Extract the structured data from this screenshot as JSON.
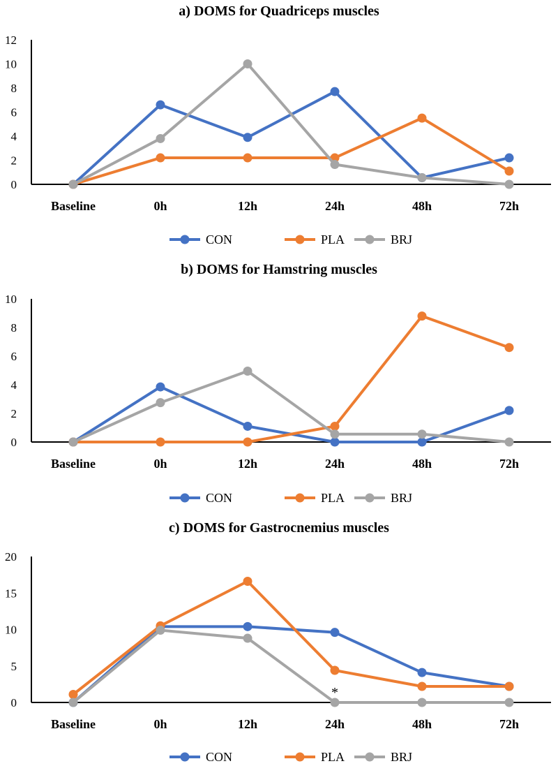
{
  "colors": {
    "CON": "#4472c4",
    "PLA": "#ed7d31",
    "BRJ": "#a5a5a5"
  },
  "chart_data": [
    {
      "type": "line",
      "title": "a) DOMS for Quadriceps muscles",
      "categories": [
        "Baseline",
        "0h",
        "12h",
        "24h",
        "48h",
        "72h"
      ],
      "ylim": [
        0,
        12
      ],
      "yticks": [
        0,
        2,
        4,
        6,
        8,
        10,
        12
      ],
      "series": [
        {
          "name": "CON",
          "values": [
            0,
            6.6,
            3.9,
            7.7,
            0.55,
            2.2
          ]
        },
        {
          "name": "PLA",
          "values": [
            0,
            2.2,
            2.2,
            2.2,
            5.5,
            1.1
          ]
        },
        {
          "name": "BRJ",
          "values": [
            0,
            3.8,
            10,
            1.65,
            0.55,
            0
          ]
        }
      ],
      "legend": "bottom",
      "annotations": []
    },
    {
      "type": "line",
      "title": "b) DOMS for Hamstring muscles",
      "categories": [
        "Baseline",
        "0h",
        "12h",
        "24h",
        "48h",
        "72h"
      ],
      "ylim": [
        0,
        10
      ],
      "yticks": [
        0,
        2,
        4,
        6,
        8,
        10
      ],
      "series": [
        {
          "name": "CON",
          "values": [
            0,
            3.85,
            1.1,
            0,
            0,
            2.2
          ]
        },
        {
          "name": "PLA",
          "values": [
            0,
            0,
            0,
            1.1,
            8.8,
            6.6
          ]
        },
        {
          "name": "BRJ",
          "values": [
            0,
            2.75,
            4.95,
            0.55,
            0.55,
            0
          ]
        }
      ],
      "legend": "bottom",
      "annotations": []
    },
    {
      "type": "line",
      "title": "c) DOMS for Gastrocnemius muscles",
      "categories": [
        "Baseline",
        "0h",
        "12h",
        "24h",
        "48h",
        "72h"
      ],
      "ylim": [
        0,
        20
      ],
      "yticks": [
        0,
        5,
        10,
        15,
        20
      ],
      "series": [
        {
          "name": "CON",
          "values": [
            0,
            10.4,
            10.4,
            9.6,
            4.1,
            2.2
          ]
        },
        {
          "name": "PLA",
          "values": [
            1.1,
            10.5,
            16.6,
            4.4,
            2.2,
            2.2
          ]
        },
        {
          "name": "BRJ",
          "values": [
            0,
            9.9,
            8.8,
            0,
            0,
            0
          ]
        }
      ],
      "legend": "bottom",
      "annotations": [
        {
          "text": "*",
          "category": "24h",
          "series": "BRJ"
        }
      ]
    }
  ]
}
